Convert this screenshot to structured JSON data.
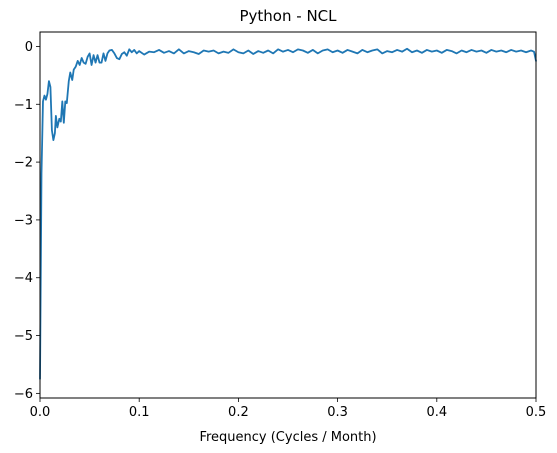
{
  "chart_data": {
    "type": "line",
    "title": "Python - NCL",
    "xlabel": "Frequency (Cycles / Month)",
    "ylabel": "",
    "xlim": [
      0,
      0.5
    ],
    "ylim": [
      -6.08,
      0.25
    ],
    "xticks": [
      0.0,
      0.1,
      0.2,
      0.3,
      0.4,
      0.5
    ],
    "xtick_labels": [
      "0.0",
      "0.1",
      "0.2",
      "0.3",
      "0.4",
      "0.5"
    ],
    "yticks": [
      0,
      -1,
      -2,
      -3,
      -4,
      -5,
      -6
    ],
    "ytick_labels": [
      "0",
      "−1",
      "−2",
      "−3",
      "−4",
      "−5",
      "−6"
    ],
    "grid": false,
    "legend": false,
    "series": [
      {
        "color": "#1f77b4",
        "points": [
          [
            0.0,
            -5.75
          ],
          [
            0.0015,
            -2.2
          ],
          [
            0.003,
            -0.95
          ],
          [
            0.0045,
            -0.85
          ],
          [
            0.006,
            -0.92
          ],
          [
            0.0075,
            -0.82
          ],
          [
            0.009,
            -0.6
          ],
          [
            0.0105,
            -0.7
          ],
          [
            0.012,
            -1.45
          ],
          [
            0.0135,
            -1.62
          ],
          [
            0.015,
            -1.5
          ],
          [
            0.016,
            -1.2
          ],
          [
            0.0175,
            -1.4
          ],
          [
            0.0195,
            -1.25
          ],
          [
            0.021,
            -1.3
          ],
          [
            0.0225,
            -0.95
          ],
          [
            0.024,
            -1.32
          ],
          [
            0.0255,
            -0.95
          ],
          [
            0.027,
            -0.98
          ],
          [
            0.029,
            -0.6
          ],
          [
            0.0305,
            -0.45
          ],
          [
            0.0325,
            -0.58
          ],
          [
            0.034,
            -0.4
          ],
          [
            0.036,
            -0.35
          ],
          [
            0.038,
            -0.25
          ],
          [
            0.04,
            -0.32
          ],
          [
            0.042,
            -0.2
          ],
          [
            0.044,
            -0.28
          ],
          [
            0.046,
            -0.3
          ],
          [
            0.048,
            -0.18
          ],
          [
            0.05,
            -0.12
          ],
          [
            0.052,
            -0.32
          ],
          [
            0.054,
            -0.15
          ],
          [
            0.056,
            -0.28
          ],
          [
            0.058,
            -0.15
          ],
          [
            0.06,
            -0.28
          ],
          [
            0.062,
            -0.28
          ],
          [
            0.064,
            -0.12
          ],
          [
            0.066,
            -0.25
          ],
          [
            0.068,
            -0.12
          ],
          [
            0.07,
            -0.07
          ],
          [
            0.0725,
            -0.06
          ],
          [
            0.075,
            -0.12
          ],
          [
            0.0775,
            -0.2
          ],
          [
            0.08,
            -0.22
          ],
          [
            0.0825,
            -0.13
          ],
          [
            0.085,
            -0.1
          ],
          [
            0.0875,
            -0.16
          ],
          [
            0.09,
            -0.05
          ],
          [
            0.0925,
            -0.1
          ],
          [
            0.095,
            -0.06
          ],
          [
            0.0975,
            -0.12
          ],
          [
            0.1,
            -0.08
          ],
          [
            0.105,
            -0.14
          ],
          [
            0.11,
            -0.09
          ],
          [
            0.115,
            -0.1
          ],
          [
            0.12,
            -0.06
          ],
          [
            0.125,
            -0.11
          ],
          [
            0.13,
            -0.08
          ],
          [
            0.135,
            -0.12
          ],
          [
            0.14,
            -0.05
          ],
          [
            0.145,
            -0.12
          ],
          [
            0.15,
            -0.08
          ],
          [
            0.155,
            -0.1
          ],
          [
            0.16,
            -0.13
          ],
          [
            0.165,
            -0.07
          ],
          [
            0.17,
            -0.09
          ],
          [
            0.175,
            -0.07
          ],
          [
            0.18,
            -0.12
          ],
          [
            0.185,
            -0.09
          ],
          [
            0.19,
            -0.11
          ],
          [
            0.195,
            -0.05
          ],
          [
            0.2,
            -0.1
          ],
          [
            0.205,
            -0.12
          ],
          [
            0.21,
            -0.07
          ],
          [
            0.215,
            -0.13
          ],
          [
            0.22,
            -0.08
          ],
          [
            0.225,
            -0.11
          ],
          [
            0.23,
            -0.07
          ],
          [
            0.235,
            -0.12
          ],
          [
            0.24,
            -0.05
          ],
          [
            0.245,
            -0.09
          ],
          [
            0.25,
            -0.06
          ],
          [
            0.255,
            -0.1
          ],
          [
            0.26,
            -0.05
          ],
          [
            0.265,
            -0.07
          ],
          [
            0.27,
            -0.11
          ],
          [
            0.275,
            -0.06
          ],
          [
            0.28,
            -0.12
          ],
          [
            0.285,
            -0.07
          ],
          [
            0.29,
            -0.05
          ],
          [
            0.295,
            -0.1
          ],
          [
            0.3,
            -0.07
          ],
          [
            0.305,
            -0.11
          ],
          [
            0.31,
            -0.06
          ],
          [
            0.315,
            -0.09
          ],
          [
            0.32,
            -0.12
          ],
          [
            0.325,
            -0.06
          ],
          [
            0.33,
            -0.1
          ],
          [
            0.335,
            -0.07
          ],
          [
            0.34,
            -0.05
          ],
          [
            0.345,
            -0.12
          ],
          [
            0.35,
            -0.08
          ],
          [
            0.355,
            -0.1
          ],
          [
            0.36,
            -0.06
          ],
          [
            0.365,
            -0.09
          ],
          [
            0.37,
            -0.04
          ],
          [
            0.375,
            -0.1
          ],
          [
            0.38,
            -0.07
          ],
          [
            0.385,
            -0.11
          ],
          [
            0.39,
            -0.06
          ],
          [
            0.395,
            -0.09
          ],
          [
            0.4,
            -0.07
          ],
          [
            0.405,
            -0.11
          ],
          [
            0.41,
            -0.06
          ],
          [
            0.415,
            -0.08
          ],
          [
            0.42,
            -0.12
          ],
          [
            0.425,
            -0.07
          ],
          [
            0.43,
            -0.1
          ],
          [
            0.435,
            -0.06
          ],
          [
            0.44,
            -0.09
          ],
          [
            0.445,
            -0.07
          ],
          [
            0.45,
            -0.11
          ],
          [
            0.455,
            -0.06
          ],
          [
            0.46,
            -0.09
          ],
          [
            0.465,
            -0.07
          ],
          [
            0.47,
            -0.1
          ],
          [
            0.475,
            -0.06
          ],
          [
            0.48,
            -0.09
          ],
          [
            0.485,
            -0.07
          ],
          [
            0.49,
            -0.1
          ],
          [
            0.495,
            -0.07
          ],
          [
            0.498,
            -0.09
          ],
          [
            0.5,
            -0.25
          ]
        ]
      }
    ]
  }
}
